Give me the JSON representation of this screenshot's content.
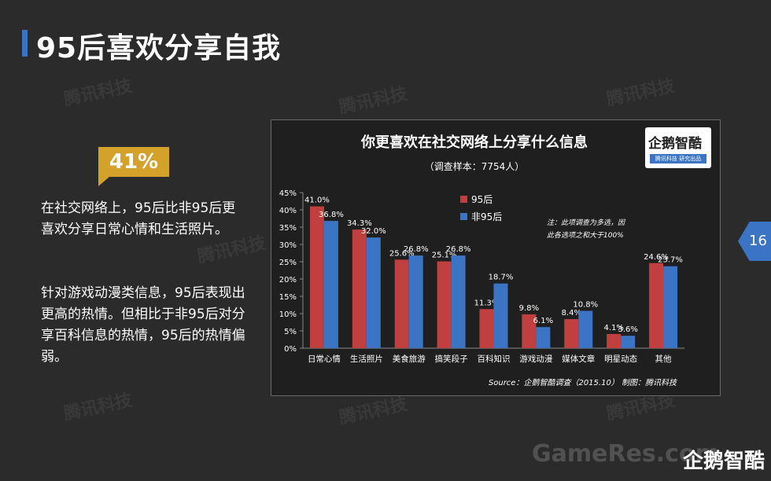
{
  "slide": {
    "title": "95后喜欢分享自我",
    "highlight": "41%",
    "paragraph1": "在社交网络上，95后比非95后更喜欢分享日常心情和生活照片。",
    "paragraph2": "针对游戏动漫类信息，95后表现出更高的热情。但相比于非95后对分享百科信息的热情，95后的热情偏弱。",
    "page_number": "16",
    "watermark": "腾讯科技",
    "footer_site": "GameRes.com",
    "footer_logo": "企鹅智酷",
    "logo_text": "企鹅智酷",
    "logo_sub": "腾讯科技 研究出品"
  },
  "chart_data": {
    "type": "bar",
    "title": "你更喜欢在社交网络上分享什么信息",
    "subtitle": "（调查样本：7754人）",
    "categories": [
      "日常心情",
      "生活照片",
      "美食旅游",
      "搞笑段子",
      "百科知识",
      "游戏动漫",
      "媒体文章",
      "明星动态",
      "其他"
    ],
    "series": [
      {
        "name": "95后",
        "values": [
          41.0,
          34.3,
          25.6,
          25.1,
          11.3,
          9.8,
          8.4,
          4.1,
          24.6
        ],
        "color": "#c0403f"
      },
      {
        "name": "非95后",
        "values": [
          36.8,
          32.0,
          26.8,
          26.8,
          18.7,
          6.1,
          10.8,
          3.6,
          23.7
        ],
        "color": "#3b74c4"
      }
    ],
    "ylim": [
      0,
      45
    ],
    "yticks": [
      "0%",
      "5%",
      "10%",
      "15%",
      "20%",
      "25%",
      "30%",
      "35%",
      "40%",
      "45%"
    ],
    "note_line1": "注：此项调查为多选，因",
    "note_line2": "此各选项之和大于100%",
    "source": "Source：企鹅智酷调查（2015.10）   制图：腾讯科技",
    "legend_position": "top-center",
    "grid": false
  }
}
